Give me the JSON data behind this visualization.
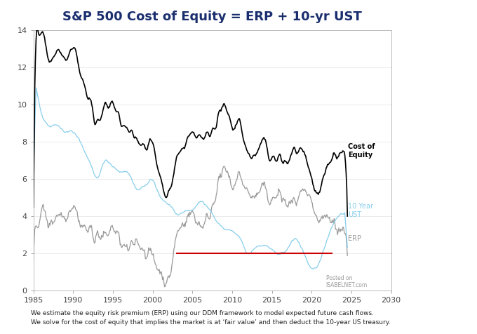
{
  "title": "S&P 500 Cost of Equity = ERP + 10-yr UST",
  "title_color": "#1a2e6e",
  "title_fontsize": 13,
  "xlim": [
    1985,
    2030
  ],
  "ylim": [
    0,
    14
  ],
  "yticks": [
    0,
    2,
    4,
    6,
    8,
    10,
    12,
    14
  ],
  "xticks": [
    1985,
    1990,
    1995,
    2000,
    2005,
    2010,
    2015,
    2020,
    2025,
    2030
  ],
  "footnote1": "We estimate the equity risk premium (ERP) using our DDM framework to model expected future cash flows.",
  "footnote2": "We solve for the cost of equity that implies the market is at ‘fair value’ and then deduct the 10-year US treasury.",
  "watermark_line1": "Posted on",
  "watermark_line2": "ISABELNET.com",
  "label_cost_of_equity": "Cost of\nEquity",
  "label_10yr_ust": "10 Year\nUST",
  "label_erp": "ERP",
  "color_cost_of_equity": "#000000",
  "color_10yr_ust": "#87CEEB",
  "color_erp": "#999999",
  "color_red_line": "#CC0000",
  "background_color": "#ffffff",
  "ust_knots_x": [
    1985,
    1986,
    1987,
    1988,
    1989,
    1990,
    1991,
    1992,
    1993,
    1994,
    1995,
    1996,
    1997,
    1998,
    1999,
    2000,
    2001,
    2002,
    2003,
    2004,
    2005,
    2006,
    2007,
    2008,
    2009,
    2010,
    2011,
    2012,
    2013,
    2014,
    2015,
    2016,
    2017,
    2018,
    2019,
    2020,
    2021,
    2022,
    2023,
    2024
  ],
  "ust_knots_y": [
    11.5,
    9.5,
    8.8,
    9.0,
    8.5,
    8.6,
    7.9,
    7.0,
    5.9,
    7.1,
    6.6,
    6.4,
    6.4,
    5.3,
    5.6,
    6.0,
    5.0,
    4.6,
    4.0,
    4.3,
    4.3,
    4.8,
    4.6,
    3.7,
    3.3,
    3.2,
    2.8,
    1.8,
    2.4,
    2.5,
    2.2,
    1.8,
    2.3,
    2.9,
    2.1,
    0.9,
    1.5,
    2.9,
    3.9,
    4.2
  ],
  "erp_knots_x": [
    1985,
    1986,
    1987,
    1988,
    1989,
    1990,
    1991,
    1992,
    1993,
    1994,
    1995,
    1996,
    1997,
    1998,
    1999,
    2000,
    2001,
    2002,
    2003,
    2004,
    2005,
    2006,
    2007,
    2008,
    2009,
    2010,
    2011,
    2012,
    2013,
    2014,
    2015,
    2016,
    2017,
    2018,
    2019,
    2020,
    2021,
    2022,
    2023,
    2024
  ],
  "erp_knots_y": [
    2.5,
    4.5,
    3.5,
    4.2,
    4.0,
    4.8,
    3.5,
    3.2,
    3.0,
    2.8,
    3.5,
    2.5,
    2.0,
    2.8,
    2.2,
    1.8,
    1.0,
    0.3,
    3.0,
    3.8,
    4.2,
    3.5,
    3.8,
    5.5,
    6.5,
    5.5,
    6.2,
    5.2,
    5.0,
    5.5,
    4.8,
    5.2,
    4.5,
    4.8,
    5.2,
    4.5,
    3.5,
    4.0,
    3.5,
    3.2
  ],
  "red_line_x": [
    2003,
    2022.5
  ],
  "red_line_y": [
    2.0,
    2.0
  ]
}
